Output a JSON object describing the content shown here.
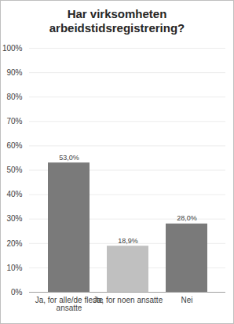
{
  "chart_data": {
    "type": "bar",
    "title": "Har virksomheten arbeidstidsregistrering?",
    "categories": [
      "Ja, for alle/de fleste ansatte",
      "Ja, for noen ansatte",
      "Nei"
    ],
    "values": [
      53.0,
      18.9,
      28.0
    ],
    "value_labels": [
      "53,0%",
      "18,9%",
      "28,0%"
    ],
    "colors": [
      "#7a7a7a",
      "#c0c0c0",
      "#7a7a7a"
    ],
    "ylim": [
      0,
      100
    ],
    "yticks": [
      {
        "value": 0,
        "label": "0%"
      },
      {
        "value": 10,
        "label": "10%"
      },
      {
        "value": 20,
        "label": "20%"
      },
      {
        "value": 30,
        "label": "30%"
      },
      {
        "value": 40,
        "label": "40%"
      },
      {
        "value": 50,
        "label": "50%"
      },
      {
        "value": 60,
        "label": "60%"
      },
      {
        "value": 70,
        "label": "70%"
      },
      {
        "value": 80,
        "label": "80%"
      },
      {
        "value": 90,
        "label": "90%"
      },
      {
        "value": 100,
        "label": "100%"
      }
    ],
    "grid": true,
    "data_labels": true
  }
}
